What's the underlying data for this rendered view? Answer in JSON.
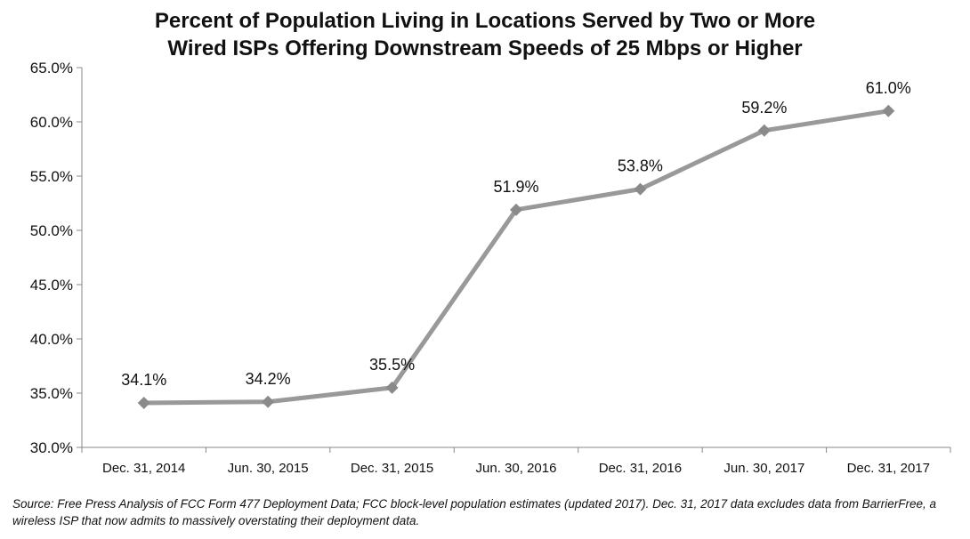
{
  "chart_data": {
    "type": "line",
    "title_lines": [
      "Percent of Population Living in Locations Served by Two or More",
      "Wired ISPs Offering Downstream Speeds of 25 Mbps or Higher"
    ],
    "categories": [
      "Dec. 31, 2014",
      "Jun. 30, 2015",
      "Dec. 31, 2015",
      "Jun. 30, 2016",
      "Dec. 31, 2016",
      "Jun. 30, 2017",
      "Dec. 31, 2017"
    ],
    "series": [
      {
        "name": "Percent of Population",
        "values": [
          34.1,
          34.2,
          35.5,
          51.9,
          53.8,
          59.2,
          61.0
        ],
        "labels": [
          "34.1%",
          "34.2%",
          "35.5%",
          "51.9%",
          "53.8%",
          "59.2%",
          "61.0%"
        ],
        "color": "#999999"
      }
    ],
    "ylim": [
      30,
      65
    ],
    "yticks": [
      30,
      35,
      40,
      45,
      50,
      55,
      60,
      65
    ],
    "ytick_labels": [
      "30.0%",
      "35.0%",
      "40.0%",
      "45.0%",
      "50.0%",
      "55.0%",
      "60.0%",
      "65.0%"
    ],
    "xlabel": "",
    "ylabel": "",
    "grid": false,
    "axis_color": "#888888"
  },
  "source_note": "Source: Free Press Analysis of FCC Form 477 Deployment Data; FCC block-level population estimates (updated  2017). Dec. 31, 2017 data excludes data from BarrierFree, a wireless ISP that now admits to massively overstating their  deployment data."
}
